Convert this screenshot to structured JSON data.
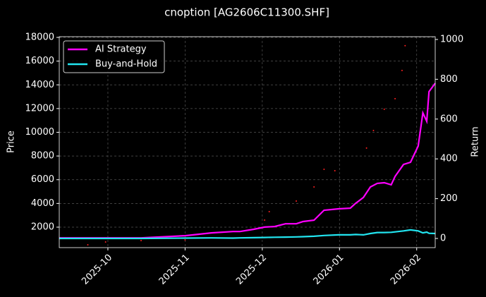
{
  "chart_data": {
    "type": "line",
    "title": "cnoption [AG2606C11300.SHF]",
    "ylabel": "Price",
    "y2label": "Return",
    "xlim": [
      -0.63,
      4.24
    ],
    "xticks": [
      {
        "value": 0,
        "label": "2025-10"
      },
      {
        "value": 1,
        "label": "2025-11"
      },
      {
        "value": 2,
        "label": "2025-12"
      },
      {
        "value": 3,
        "label": "2026-01"
      },
      {
        "value": 4,
        "label": "2026-02"
      }
    ],
    "ylim": [
      274,
      18060
    ],
    "yticks": [
      2000,
      4000,
      6000,
      8000,
      10000,
      12000,
      14000,
      16000,
      18000
    ],
    "y2lim": [
      -46,
      1014
    ],
    "y2ticks": [
      0,
      200,
      400,
      600,
      800,
      1000
    ],
    "grid": true,
    "legend": "upper left",
    "price": {
      "color": "#ff2020",
      "x": [
        -0.26,
        -0.03,
        0.43,
        1.0,
        2.03,
        2.09,
        2.44,
        2.67,
        2.8,
        2.94,
        3.35,
        3.44,
        3.58,
        3.72,
        3.81,
        3.85
      ],
      "values": [
        512,
        750,
        870,
        929,
        2595,
        3310,
        4200,
        5390,
        6880,
        6760,
        8670,
        10150,
        11940,
        12830,
        15210,
        17300
      ]
    },
    "x": [
      -0.63,
      0.43,
      1.0,
      1.34,
      1.62,
      1.71,
      1.89,
      2.03,
      2.16,
      2.3,
      2.44,
      2.53,
      2.67,
      2.8,
      2.99,
      3.14,
      3.21,
      3.31,
      3.4,
      3.49,
      3.58,
      3.67,
      3.72,
      3.83,
      3.92,
      4.02,
      4.08,
      4.13,
      4.16,
      4.24
    ],
    "series": [
      {
        "name": "AI Strategy",
        "color": "#ff00ff",
        "axis": "y2",
        "values": [
          3,
          3,
          14,
          28,
          35,
          35,
          46,
          57,
          60,
          74,
          74,
          85,
          92,
          142,
          149,
          152,
          177,
          206,
          259,
          277,
          280,
          270,
          312,
          372,
          383,
          465,
          631,
          589,
          738,
          780
        ]
      },
      {
        "name": "Buy-and-Hold",
        "color": "#22e5f0",
        "axis": "y2",
        "values": [
          0,
          0,
          2,
          3,
          2,
          3,
          4,
          5,
          6,
          7,
          8,
          9,
          11,
          15,
          18,
          18,
          20,
          18,
          25,
          30,
          30,
          31,
          33,
          38,
          43,
          38,
          28,
          32,
          26,
          25
        ]
      }
    ]
  }
}
